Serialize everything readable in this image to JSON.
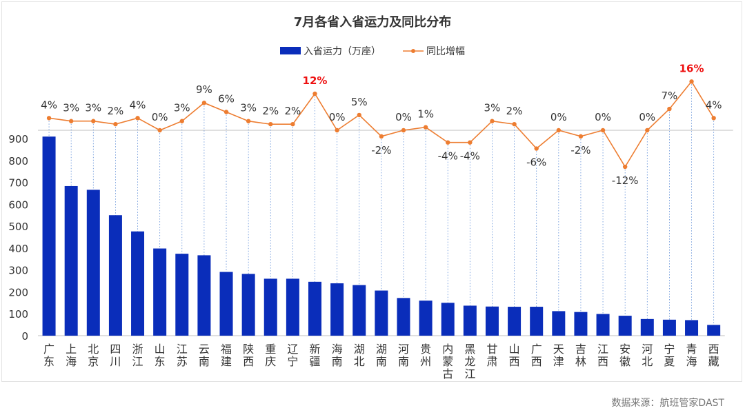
{
  "chart_data": {
    "type": "bar+line",
    "title": "7月各省入省运力及同比分布",
    "categories": [
      "广东",
      "上海",
      "北京",
      "四川",
      "浙江",
      "山东",
      "江苏",
      "云南",
      "福建",
      "陕西",
      "重庆",
      "辽宁",
      "新疆",
      "海南",
      "湖北",
      "湖南",
      "河南",
      "贵州",
      "内蒙古",
      "黑龙江",
      "甘肃",
      "山西",
      "广西",
      "天津",
      "吉林",
      "江西",
      "安徽",
      "河北",
      "宁夏",
      "青海",
      "西藏"
    ],
    "series": [
      {
        "name": "入省运力（万座）",
        "type": "bar",
        "color": "#0a2dba",
        "values": [
          909,
          683,
          666,
          550,
          476,
          398,
          374,
          367,
          291,
          282,
          260,
          260,
          246,
          239,
          231,
          206,
          172,
          160,
          150,
          137,
          133,
          132,
          132,
          112,
          108,
          99,
          91,
          76,
          73,
          71,
          49
        ]
      },
      {
        "name": "同比增幅",
        "type": "line",
        "color": "#ed7d31",
        "values": [
          4,
          3,
          3,
          2,
          4,
          0,
          3,
          9,
          6,
          3,
          2,
          2,
          12,
          0,
          5,
          -2,
          0,
          1,
          -4,
          -4,
          3,
          2,
          -6,
          0,
          -2,
          0,
          -12,
          0,
          7,
          16,
          4
        ],
        "labels": [
          "4%",
          "3%",
          "3%",
          "2%",
          "4%",
          "0%",
          "3%",
          "9%",
          "6%",
          "3%",
          "2%",
          "2%",
          "12%",
          "0%",
          "5%",
          "-2%",
          "0%",
          "1%",
          "-4%",
          "-4%",
          "3%",
          "2%",
          "-6%",
          "0%",
          "-2%",
          "0%",
          "-12%",
          "0%",
          "7%",
          "16%",
          "4%"
        ],
        "highlight_color": "#ee1111",
        "highlight": [
          12,
          29
        ]
      }
    ],
    "ylim": [
      0,
      900
    ],
    "yticks": [
      "900",
      "800",
      "700",
      "600",
      "500",
      "400",
      "300",
      "200",
      "100",
      "0"
    ],
    "legend_position": "top-center",
    "grid": false
  },
  "source": "数据来源：航班管家DAST"
}
